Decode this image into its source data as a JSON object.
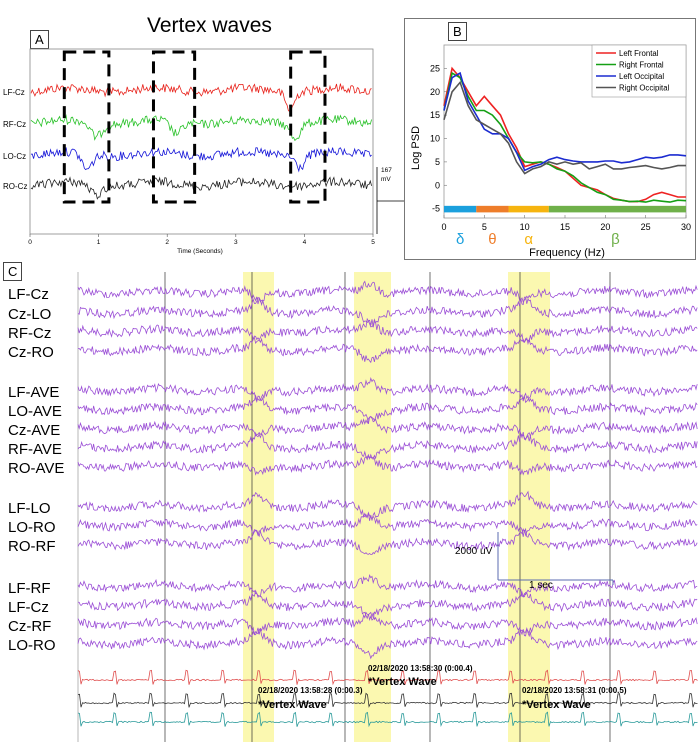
{
  "colors": {
    "red": "#e8221b",
    "green": "#2ac22a",
    "blue": "#1515d8",
    "black": "#222222",
    "purple": "#9b4fd6",
    "yellow": "#fbf8b0",
    "psd_red": "#ee2222",
    "psd_green": "#15a015",
    "psd_blue": "#1b2bd0",
    "psd_black": "#555555"
  },
  "panelA": {
    "label": "A",
    "title": "Vertex waves",
    "channels": [
      "LF-Cz",
      "RF-Cz",
      "LO-Cz",
      "RO-Cz"
    ],
    "x_ticks": [
      "0",
      "1",
      "2",
      "3",
      "4",
      "5"
    ],
    "xlabel": "Time (Seconds)",
    "scale_value": "167",
    "scale_unit": "mV"
  },
  "panelB": {
    "label": "B",
    "ylabel": "Log PSD",
    "xlabel": "Frequency (Hz)",
    "bands": [
      {
        "symbol": "δ",
        "color": "#1ba0dd",
        "from": 0,
        "to": 4
      },
      {
        "symbol": "θ",
        "color": "#ee7d2a",
        "from": 4,
        "to": 8
      },
      {
        "symbol": "α",
        "color": "#f6b40f",
        "from": 8,
        "to": 13
      },
      {
        "symbol": "β",
        "color": "#6fb04a",
        "from": 13,
        "to": 30
      }
    ]
  },
  "panelC": {
    "label": "C",
    "groups": [
      [
        "LF-Cz",
        "Cz-LO",
        "RF-Cz",
        "Cz-RO"
      ],
      [
        "LF-AVE",
        "LO-AVE",
        "Cz-AVE",
        "RF-AVE",
        "RO-AVE"
      ],
      [
        "LF-LO",
        "LO-RO",
        "RO-RF"
      ],
      [
        "LF-RF",
        "LF-Cz",
        "Cz-RF",
        "LO-RO"
      ]
    ],
    "scale_amp": "2000 uV",
    "scale_time": "1 sec",
    "events": [
      {
        "timestamp": "02/18/2020 13:58:28 (0:00.3)",
        "label": "*Vertex Wave"
      },
      {
        "timestamp": "02/18/2020 13:58:30 (0:00.4)",
        "label": "*Vertex Wave"
      },
      {
        "timestamp": "02/18/2020 13:58:31 (0:00.5)",
        "label": "*Vertex Wave"
      }
    ]
  },
  "chart_data": [
    {
      "type": "line",
      "title": "Vertex waves",
      "xlabel": "Time (Seconds)",
      "ylabel": "",
      "xlim": [
        0,
        5
      ],
      "series": [
        {
          "name": "LF-Cz"
        },
        {
          "name": "RF-Cz"
        },
        {
          "name": "LO-Cz"
        },
        {
          "name": "RO-Cz"
        }
      ],
      "annotations": [
        "dashed boxes at 0.5-1.2 s, 1.8-2.4 s, 3.8-4.3 s",
        "scale bar 167 mV"
      ]
    },
    {
      "type": "line",
      "title": "",
      "xlabel": "Frequency (Hz)",
      "ylabel": "Log PSD",
      "xlim": [
        0,
        30
      ],
      "ylim": [
        -7,
        30
      ],
      "x_ticks": [
        0,
        5,
        10,
        15,
        20,
        25,
        30
      ],
      "y_ticks": [
        -5,
        0,
        5,
        10,
        15,
        20,
        25
      ],
      "x": [
        0,
        1,
        2,
        3,
        4,
        5,
        6,
        7,
        8,
        9,
        10,
        11,
        12,
        13,
        14,
        15,
        16,
        17,
        18,
        19,
        20,
        21,
        22,
        23,
        24,
        25,
        26,
        27,
        28,
        29,
        30
      ],
      "series": [
        {
          "name": "Left Frontal",
          "color": "#ee2222",
          "values": [
            17,
            25,
            23,
            20,
            17,
            19,
            17,
            15,
            11,
            8,
            4,
            4.5,
            5,
            4.5,
            3.8,
            3,
            1.5,
            0,
            -0.5,
            -1,
            -2,
            -2.8,
            -3.2,
            -3.5,
            -3.5,
            -3,
            -2,
            -1.5,
            -2,
            -2.5,
            -2.5
          ]
        },
        {
          "name": "Right Frontal",
          "color": "#15a015",
          "values": [
            16,
            24,
            23,
            19,
            16,
            16,
            15,
            13,
            10,
            7,
            5,
            4.8,
            5,
            4.5,
            3.5,
            3,
            2,
            0.5,
            -0.5,
            -1.5,
            -2,
            -3,
            -3.2,
            -3.5,
            -3.4,
            -3.6,
            -3.2,
            -3.4,
            -3.6,
            -3.2,
            -3.3
          ]
        },
        {
          "name": "Left Occipital",
          "color": "#1b2bd0",
          "values": [
            16,
            23,
            24,
            18,
            15,
            12,
            11,
            11,
            10,
            7,
            3.2,
            4,
            4.5,
            5.5,
            6,
            5.5,
            5.2,
            5,
            5,
            5,
            5.2,
            5.2,
            4.8,
            5,
            5.5,
            6,
            5.8,
            6,
            6.5,
            6.5,
            6.3
          ]
        },
        {
          "name": "Right Occipital",
          "color": "#555555",
          "values": [
            14,
            20,
            22,
            17,
            14,
            13,
            12,
            11,
            9,
            5,
            2.5,
            3.5,
            4,
            5,
            4.5,
            5,
            4.5,
            4.8,
            3.5,
            4,
            4.5,
            3.5,
            3.5,
            3.8,
            4,
            4.2,
            3.8,
            3.5,
            3.8,
            4.2,
            4.2
          ]
        }
      ],
      "legend": "top-right",
      "bands": [
        "δ",
        "θ",
        "α",
        "β"
      ]
    },
    {
      "type": "line",
      "title": "",
      "xlabel": "",
      "ylabel": "",
      "series": [
        {
          "name": "LF-Cz"
        },
        {
          "name": "Cz-LO"
        },
        {
          "name": "RF-Cz"
        },
        {
          "name": "Cz-RO"
        },
        {
          "name": "LF-AVE"
        },
        {
          "name": "LO-AVE"
        },
        {
          "name": "Cz-AVE"
        },
        {
          "name": "RF-AVE"
        },
        {
          "name": "RO-AVE"
        },
        {
          "name": "LF-LO"
        },
        {
          "name": "LO-RO"
        },
        {
          "name": "RO-RF"
        },
        {
          "name": "LF-RF"
        },
        {
          "name": "LF-Cz"
        },
        {
          "name": "Cz-RF"
        },
        {
          "name": "LO-RO"
        }
      ],
      "annotations": [
        "02/18/2020 13:58:28 (0:00.3) *Vertex Wave",
        "02/18/2020 13:58:30 (0:00.4) *Vertex Wave",
        "02/18/2020 13:58:31 (0:00.5) *Vertex Wave"
      ]
    }
  ]
}
